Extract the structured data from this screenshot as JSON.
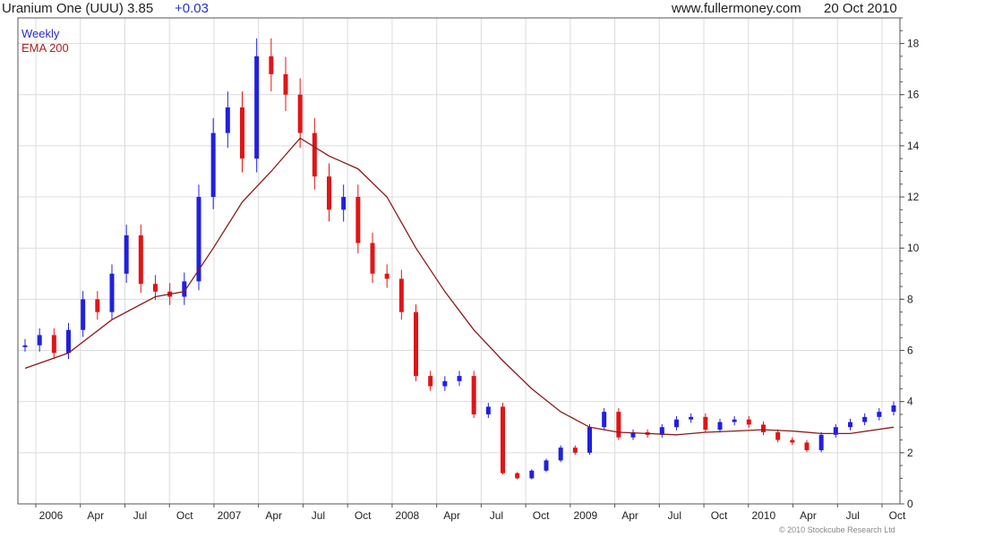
{
  "header": {
    "title": "Uranium One (UUU) 3.85",
    "change": "+0.03",
    "site": "www.fullermoney.com",
    "date": "20 Oct 2010"
  },
  "footer": {
    "credit": "© 2010 Stockcube Research Ltd"
  },
  "colors": {
    "up": "#2020e0",
    "down": "#e01515",
    "ema": "#8b1a1a",
    "grid": "#dcdcdc",
    "frame": "#555555"
  },
  "chart_data": {
    "type": "candlestick",
    "ylim": [
      0,
      19
    ],
    "yticks": [
      0,
      2,
      4,
      6,
      8,
      10,
      12,
      14,
      16,
      18
    ],
    "grid": true,
    "legend_position": "top-left",
    "x_labels": [
      "2006",
      "Apr",
      "Jul",
      "Oct",
      "2007",
      "Apr",
      "Jul",
      "Oct",
      "2008",
      "Apr",
      "Jul",
      "Oct",
      "2009",
      "Apr",
      "Jul",
      "Oct",
      "2010",
      "Apr",
      "Jul",
      "Oct"
    ],
    "series": [
      {
        "name": "Weekly",
        "kind": "weekly close",
        "x": [
          0,
          1,
          2,
          3,
          4,
          5,
          6,
          7,
          8,
          9,
          10,
          11,
          12,
          13,
          14,
          15,
          16,
          17,
          18,
          19,
          20,
          21,
          22,
          23,
          24,
          25,
          26,
          27,
          28,
          29,
          30,
          31,
          32,
          33,
          34,
          35,
          36,
          37,
          38,
          39,
          40,
          41,
          42,
          43,
          44,
          45,
          46,
          47,
          48,
          49,
          50,
          51,
          52,
          53,
          54,
          55,
          56,
          57,
          58,
          59,
          60
        ],
        "values": [
          6.2,
          6.6,
          5.9,
          6.8,
          8.0,
          7.5,
          9.0,
          10.5,
          8.6,
          8.3,
          8.1,
          8.7,
          12.0,
          14.5,
          15.5,
          13.5,
          17.5,
          16.8,
          16.0,
          14.5,
          12.8,
          11.5,
          12.0,
          10.2,
          9.0,
          8.8,
          7.5,
          5.0,
          4.6,
          4.8,
          5.0,
          3.5,
          3.8,
          1.2,
          1.0,
          1.3,
          1.7,
          2.2,
          2.0,
          3.0,
          3.6,
          2.6,
          2.8,
          2.7,
          3.0,
          3.3,
          3.4,
          2.9,
          3.2,
          3.3,
          3.1,
          2.8,
          2.5,
          2.4,
          2.1,
          2.7,
          3.0,
          3.2,
          3.4,
          3.6,
          3.85
        ]
      },
      {
        "name": "EMA 200",
        "kind": "ema",
        "x": [
          0,
          3,
          6,
          9,
          11,
          13,
          15,
          17,
          19,
          21,
          23,
          25,
          27,
          29,
          31,
          33,
          35,
          37,
          39,
          41,
          43,
          45,
          47,
          49,
          51,
          53,
          55,
          57,
          60
        ],
        "values": [
          5.3,
          5.9,
          7.2,
          8.1,
          8.3,
          10.0,
          11.8,
          13.0,
          14.3,
          13.6,
          13.1,
          12.0,
          10.0,
          8.3,
          6.8,
          5.6,
          4.5,
          3.6,
          3.0,
          2.8,
          2.75,
          2.7,
          2.8,
          2.85,
          2.9,
          2.85,
          2.75,
          2.75,
          3.0
        ]
      }
    ]
  }
}
